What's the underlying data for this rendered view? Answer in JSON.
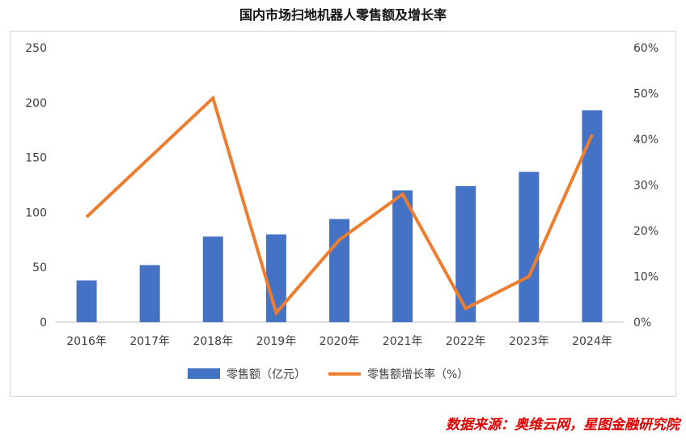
{
  "chart_data": {
    "type": "bar+line",
    "title": "国内市场扫地机器人零售额及增长率",
    "categories": [
      "2016年",
      "2017年",
      "2018年",
      "2019年",
      "2020年",
      "2021年",
      "2022年",
      "2023年",
      "2024年"
    ],
    "series": [
      {
        "name": "零售额（亿元）",
        "type": "bar",
        "axis": "left",
        "color": "#4472C4",
        "values": [
          38,
          52,
          78,
          80,
          94,
          120,
          124,
          137,
          193
        ]
      },
      {
        "name": "零售额增长率（%）",
        "type": "line",
        "axis": "right",
        "color": "#ED7D31",
        "values": [
          23,
          36,
          49,
          2,
          18,
          28,
          3,
          10,
          41
        ]
      }
    ],
    "y_left": {
      "ylim": [
        0,
        250
      ],
      "ticks": [
        "0",
        "50",
        "100",
        "150",
        "200",
        "250"
      ]
    },
    "y_right": {
      "ylim": [
        0,
        60
      ],
      "ticks": [
        "0%",
        "10%",
        "20%",
        "30%",
        "40%",
        "50%",
        "60%"
      ]
    },
    "grid": false,
    "legend_position": "bottom"
  },
  "source": "数据来源：奥维云网，星图金融研究院"
}
